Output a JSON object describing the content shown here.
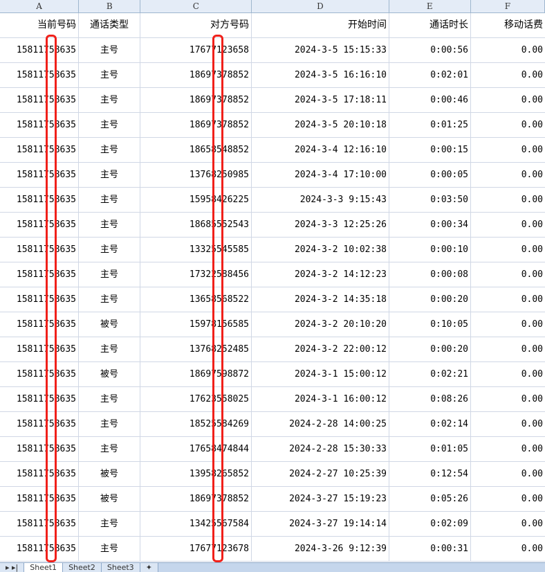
{
  "columns": [
    "A",
    "B",
    "C",
    "D",
    "E",
    "F"
  ],
  "headers": [
    "当前号码",
    "通话类型",
    "对方号码",
    "开始时间",
    "通话时长",
    "移动话费"
  ],
  "rows": [
    [
      "15811758635",
      "主号",
      "17677123658",
      "2024-3-5 15:15:33",
      "0:00:56",
      "0.00"
    ],
    [
      "15811758635",
      "主号",
      "18697378852",
      "2024-3-5 16:16:10",
      "0:02:01",
      "0.00"
    ],
    [
      "15811758635",
      "主号",
      "18697378852",
      "2024-3-5 17:18:11",
      "0:00:46",
      "0.00"
    ],
    [
      "15811758635",
      "主号",
      "18697378852",
      "2024-3-5 20:10:18",
      "0:01:25",
      "0.00"
    ],
    [
      "15811758635",
      "主号",
      "18658548852",
      "2024-3-4 12:16:10",
      "0:00:15",
      "0.00"
    ],
    [
      "15811758635",
      "主号",
      "13768250985",
      "2024-3-4 17:10:00",
      "0:00:05",
      "0.00"
    ],
    [
      "15811758635",
      "主号",
      "15958426225",
      "2024-3-3 9:15:43",
      "0:03:50",
      "0.00"
    ],
    [
      "15811758635",
      "主号",
      "18685552543",
      "2024-3-3 12:25:26",
      "0:00:34",
      "0.00"
    ],
    [
      "15811758635",
      "主号",
      "13325545585",
      "2024-3-2 10:02:38",
      "0:00:10",
      "0.00"
    ],
    [
      "15811758635",
      "主号",
      "17322588456",
      "2024-3-2 14:12:23",
      "0:00:08",
      "0.00"
    ],
    [
      "15811758635",
      "主号",
      "13658568522",
      "2024-3-2 14:35:18",
      "0:00:20",
      "0.00"
    ],
    [
      "15811758635",
      "被号",
      "15978156585",
      "2024-3-2 20:10:20",
      "0:10:05",
      "0.00"
    ],
    [
      "15811758635",
      "主号",
      "13768252485",
      "2024-3-2 22:00:12",
      "0:00:20",
      "0.00"
    ],
    [
      "15811758635",
      "被号",
      "18697598872",
      "2024-3-1 15:00:12",
      "0:02:21",
      "0.00"
    ],
    [
      "15811758635",
      "主号",
      "17623558025",
      "2024-3-1 16:00:12",
      "0:08:26",
      "0.00"
    ],
    [
      "15811758635",
      "主号",
      "18525584269",
      "2024-2-28 14:00:25",
      "0:02:14",
      "0.00"
    ],
    [
      "15811758635",
      "主号",
      "17658474844",
      "2024-2-28 15:30:33",
      "0:01:05",
      "0.00"
    ],
    [
      "15811758635",
      "被号",
      "13958265852",
      "2024-2-27 10:25:39",
      "0:12:54",
      "0.00"
    ],
    [
      "15811758635",
      "被号",
      "18697378852",
      "2024-3-27 15:19:23",
      "0:05:26",
      "0.00"
    ],
    [
      "15811758635",
      "主号",
      "13425567584",
      "2024-3-27 19:14:14",
      "0:02:09",
      "0.00"
    ],
    [
      "15811758635",
      "主号",
      "17677123678",
      "2024-3-26 9:12:39",
      "0:00:31",
      "0.00"
    ]
  ],
  "sheet_tabs": [
    "Sheet1",
    "Sheet2",
    "Sheet3"
  ],
  "redaction_color": "#f0201a"
}
